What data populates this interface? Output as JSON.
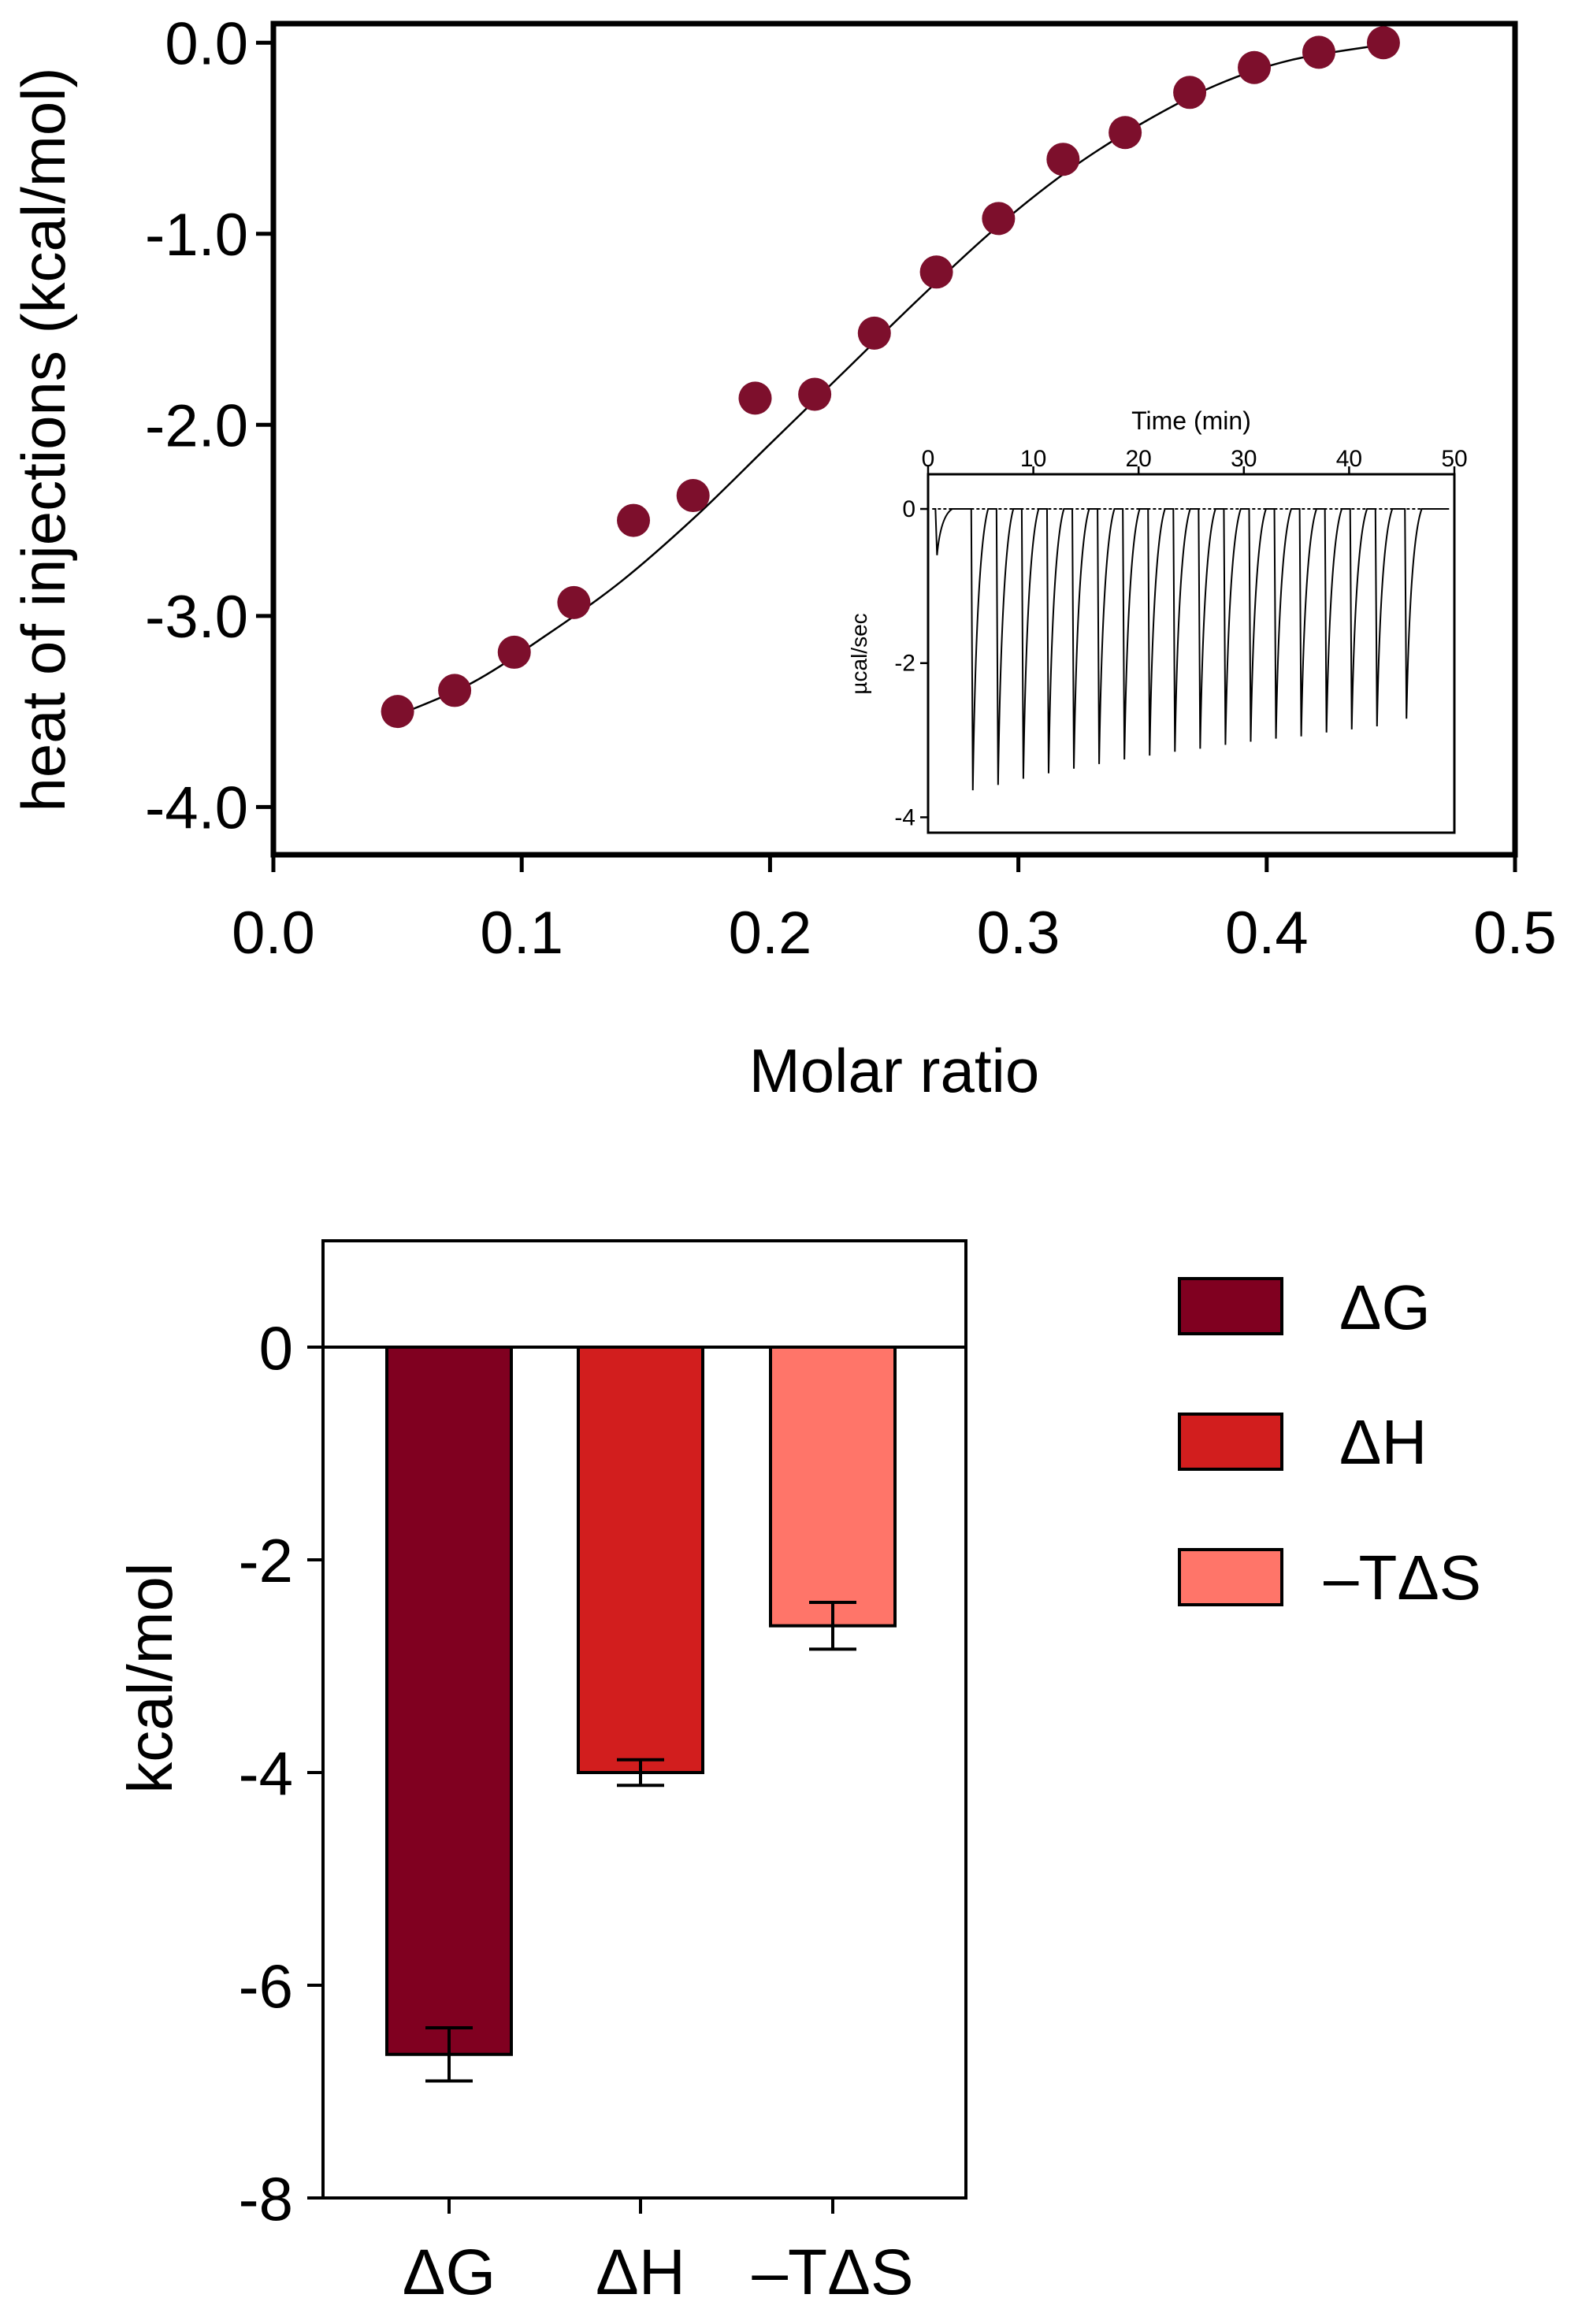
{
  "colors": {
    "marker": "#7d0f2c",
    "dG": "#800020",
    "dH": "#d21e1e",
    "mTdS": "#ff7569",
    "axis": "#000000"
  },
  "chart_data": [
    {
      "type": "scatter",
      "xlabel": "Molar ratio",
      "ylabel": "heat of injections (kcal/mol)",
      "xlim": [
        0.0,
        0.5
      ],
      "ylim": [
        -4.25,
        0.1
      ],
      "xticks": [
        "0.0",
        "0.1",
        "0.2",
        "0.3",
        "0.4",
        "0.5"
      ],
      "yticks": [
        "0.0",
        "-1.0",
        "-2.0",
        "-3.0",
        "-4.0"
      ],
      "points": [
        {
          "x": 0.05,
          "y": -3.5
        },
        {
          "x": 0.073,
          "y": -3.39
        },
        {
          "x": 0.097,
          "y": -3.19
        },
        {
          "x": 0.121,
          "y": -2.93
        },
        {
          "x": 0.145,
          "y": -2.5
        },
        {
          "x": 0.169,
          "y": -2.37
        },
        {
          "x": 0.194,
          "y": -1.86
        },
        {
          "x": 0.218,
          "y": -1.84
        },
        {
          "x": 0.242,
          "y": -1.52
        },
        {
          "x": 0.267,
          "y": -1.2
        },
        {
          "x": 0.292,
          "y": -0.92
        },
        {
          "x": 0.318,
          "y": -0.61
        },
        {
          "x": 0.343,
          "y": -0.47
        },
        {
          "x": 0.369,
          "y": -0.26
        },
        {
          "x": 0.395,
          "y": -0.13
        },
        {
          "x": 0.421,
          "y": -0.05
        },
        {
          "x": 0.447,
          "y": 0.0
        }
      ],
      "fit_line": [
        {
          "x": 0.05,
          "y": -3.52
        },
        {
          "x": 0.08,
          "y": -3.35
        },
        {
          "x": 0.11,
          "y": -3.1
        },
        {
          "x": 0.14,
          "y": -2.82
        },
        {
          "x": 0.17,
          "y": -2.48
        },
        {
          "x": 0.2,
          "y": -2.1
        },
        {
          "x": 0.23,
          "y": -1.72
        },
        {
          "x": 0.26,
          "y": -1.34
        },
        {
          "x": 0.29,
          "y": -0.98
        },
        {
          "x": 0.32,
          "y": -0.67
        },
        {
          "x": 0.35,
          "y": -0.42
        },
        {
          "x": 0.38,
          "y": -0.22
        },
        {
          "x": 0.41,
          "y": -0.09
        },
        {
          "x": 0.447,
          "y": -0.01
        }
      ]
    },
    {
      "type": "line",
      "xlabel": "Time (min)",
      "ylabel": "µcal/sec",
      "xlim": [
        0,
        50
      ],
      "ylim": [
        -4.2,
        0.45
      ],
      "xticks": [
        "0",
        "10",
        "20",
        "30",
        "40",
        "50"
      ],
      "yticks": [
        "0",
        "-2",
        "-4"
      ],
      "injection_times": [
        0.7,
        4.1,
        6.5,
        8.9,
        11.3,
        13.7,
        16.1,
        18.5,
        20.9,
        23.3,
        25.7,
        28.1,
        30.5,
        32.9,
        35.3,
        37.7,
        40.1,
        42.5,
        45.3
      ],
      "injection_peaks": [
        -0.6,
        -3.65,
        -3.58,
        -3.5,
        -3.43,
        -3.37,
        -3.31,
        -3.25,
        -3.2,
        -3.15,
        -3.11,
        -3.06,
        -3.02,
        -2.98,
        -2.95,
        -2.9,
        -2.86,
        -2.82,
        -2.72
      ]
    },
    {
      "type": "bar",
      "ylabel": "kcal/mol",
      "ylim": [
        -8,
        1
      ],
      "yticks": [
        "0",
        "-2",
        "-4",
        "-6",
        "-8"
      ],
      "categories": [
        "ΔG",
        "ΔH",
        "–TΔS"
      ],
      "values": [
        -6.65,
        -4.0,
        -2.62
      ],
      "errors": [
        0.25,
        0.12,
        0.22
      ],
      "legend": [
        "ΔG",
        "ΔH",
        "–TΔS"
      ],
      "legend_position": "right"
    }
  ]
}
